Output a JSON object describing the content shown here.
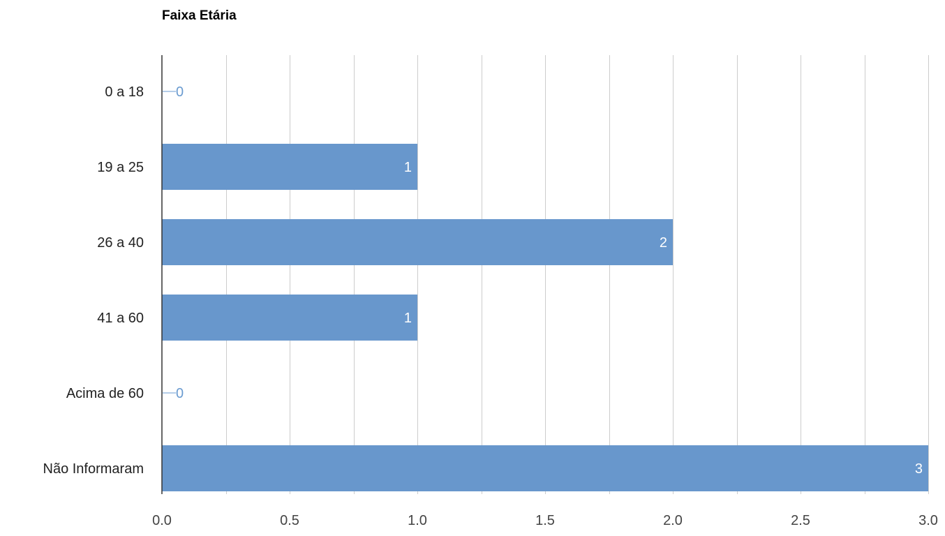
{
  "chart_data": {
    "type": "bar",
    "orientation": "horizontal",
    "title": "Faixa Etária",
    "categories": [
      "0 a 18",
      "19 a 25",
      "26 a 40",
      "41 a 60",
      "Acima de 60",
      "Não Informaram"
    ],
    "values": [
      0,
      1,
      2,
      1,
      0,
      3
    ],
    "value_labels": [
      "0",
      "1",
      "2",
      "1",
      "0",
      "3"
    ],
    "xlim": [
      0,
      3
    ],
    "xticks": [
      "0.0",
      "0.5",
      "1.0",
      "1.5",
      "2.0",
      "2.5",
      "3.0"
    ],
    "minor_gridlines_per_major": 2,
    "grid": true,
    "legend": "none",
    "colors": {
      "bar": "#6897cc",
      "outside_label": "#6a9bd0",
      "inside_label": "#ffffff"
    }
  }
}
